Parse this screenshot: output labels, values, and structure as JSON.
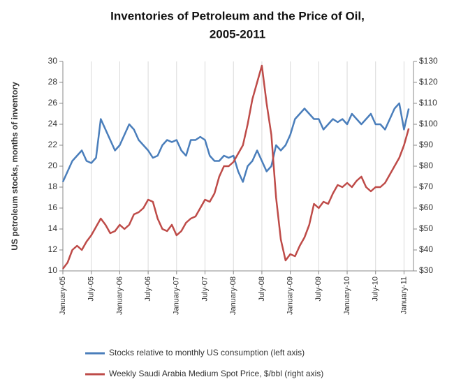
{
  "chart_data": {
    "type": "line",
    "title": [
      "Inventories of Petroleum and the Price of Oil,",
      "2005-2011"
    ],
    "ylabel": "US petroleum stocks, months of inventory",
    "x": [
      0,
      1,
      2,
      3,
      4,
      5,
      6,
      7,
      8,
      9,
      10,
      11,
      12,
      13,
      14,
      15,
      16,
      17,
      18,
      19,
      20,
      21,
      22,
      23,
      24,
      25,
      26,
      27,
      28,
      29,
      30,
      31,
      32,
      33,
      34,
      35,
      36,
      37,
      38,
      39,
      40,
      41,
      42,
      43,
      44,
      45,
      46,
      47,
      48,
      49,
      50,
      51,
      52,
      53,
      54,
      55,
      56,
      57,
      58,
      59,
      60,
      61,
      62,
      63,
      64,
      65,
      66,
      67,
      68,
      69,
      70,
      71,
      72,
      73
    ],
    "xlim": [
      0,
      74
    ],
    "xticks": [
      {
        "value": 0,
        "label": "January-05"
      },
      {
        "value": 6,
        "label": "July-05"
      },
      {
        "value": 12,
        "label": "January-06"
      },
      {
        "value": 18,
        "label": "July-06"
      },
      {
        "value": 24,
        "label": "January-07"
      },
      {
        "value": 30,
        "label": "July-07"
      },
      {
        "value": 36,
        "label": "January-08"
      },
      {
        "value": 42,
        "label": "July-08"
      },
      {
        "value": 48,
        "label": "January-09"
      },
      {
        "value": 54,
        "label": "July-09"
      },
      {
        "value": 60,
        "label": "January-10"
      },
      {
        "value": 66,
        "label": "July-10"
      },
      {
        "value": 72,
        "label": "January-11"
      }
    ],
    "ylim": [
      10,
      30
    ],
    "yticks": [
      10,
      12,
      14,
      16,
      18,
      20,
      22,
      24,
      26,
      28,
      30
    ],
    "y2lim": [
      30,
      130
    ],
    "y2ticks": [
      {
        "value": 30,
        "label": "$30"
      },
      {
        "value": 40,
        "label": "$40"
      },
      {
        "value": 50,
        "label": "$50"
      },
      {
        "value": 60,
        "label": "$60"
      },
      {
        "value": 70,
        "label": "$70"
      },
      {
        "value": 80,
        "label": "$80"
      },
      {
        "value": 90,
        "label": "$90"
      },
      {
        "value": 100,
        "label": "$100"
      },
      {
        "value": 110,
        "label": "$110"
      },
      {
        "value": 120,
        "label": "$120"
      },
      {
        "value": 130,
        "label": "$130"
      }
    ],
    "grid": "x",
    "series": [
      {
        "name": "Stocks relative to monthly US consumption (left axis)",
        "color": "#4a7ebb",
        "axis": "y",
        "values": [
          18.5,
          19.5,
          20.5,
          21,
          21.5,
          20.5,
          20.3,
          20.8,
          24.5,
          23.5,
          22.5,
          21.5,
          22,
          23,
          24,
          23.5,
          22.5,
          22,
          21.5,
          20.8,
          21,
          22,
          22.5,
          22.3,
          22.5,
          21.5,
          21,
          22.5,
          22.5,
          22.8,
          22.5,
          21,
          20.5,
          20.5,
          21,
          20.8,
          21,
          19.5,
          18.5,
          20,
          20.5,
          21.5,
          20.5,
          19.5,
          20,
          22,
          21.5,
          22,
          23,
          24.5,
          25,
          25.5,
          25,
          24.5,
          24.5,
          23.5,
          24,
          24.5,
          24.2,
          24.5,
          24,
          25,
          24.5,
          24,
          24.5,
          25,
          24,
          24,
          23.5,
          24.5,
          25.5,
          26,
          23.5,
          25.5
        ]
      },
      {
        "name": "Weekly Saudi Arabia Medium Spot Price, $/bbl (right axis)",
        "color": "#be4b48",
        "axis": "y2",
        "values": [
          31,
          34,
          40,
          42,
          40,
          44,
          47,
          51,
          55,
          52,
          48,
          49,
          52,
          50,
          52,
          57,
          58,
          60,
          64,
          63,
          55,
          50,
          49,
          52,
          47,
          49,
          53,
          55,
          56,
          60,
          64,
          63,
          67,
          75,
          80,
          80,
          82,
          86,
          90,
          100,
          112,
          120,
          128,
          110,
          95,
          65,
          45,
          35,
          38,
          37,
          42,
          46,
          52,
          62,
          60,
          63,
          62,
          67,
          71,
          70,
          72,
          70,
          73,
          75,
          70,
          68,
          70,
          70,
          72,
          76,
          80,
          84,
          90,
          98
        ]
      }
    ]
  }
}
